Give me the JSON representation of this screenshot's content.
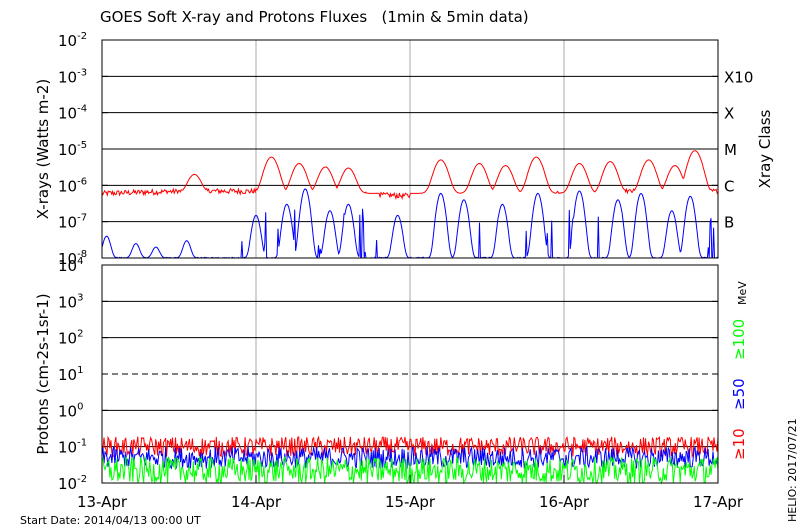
{
  "chart_data": [
    {
      "type": "line",
      "title": "GOES Soft X-ray and Protons Fluxes   (1min & 5min data)",
      "ylabel": "X-rays (Watts m-2)",
      "yscale": "log",
      "ylim": [
        1e-08,
        0.01
      ],
      "yticks": [
        {
          "base": "10",
          "exp": "-2"
        },
        {
          "base": "10",
          "exp": "-3"
        },
        {
          "base": "10",
          "exp": "-4"
        },
        {
          "base": "10",
          "exp": "-5"
        },
        {
          "base": "10",
          "exp": "-6"
        },
        {
          "base": "10",
          "exp": "-7"
        },
        {
          "base": "10",
          "exp": "-8"
        }
      ],
      "right_axis_label": "Xray Class",
      "xray_classes": [
        {
          "label": "X10",
          "value": 0.001
        },
        {
          "label": "X",
          "value": 0.0001
        },
        {
          "label": "M",
          "value": 1e-05
        },
        {
          "label": "C",
          "value": 1e-06
        },
        {
          "label": "B",
          "value": 1e-07
        }
      ],
      "series": [
        {
          "color": "#ff0000",
          "baseline": 6e-07,
          "peaks": [
            [
              1.1,
              6e-06
            ],
            [
              1.28,
              4e-06
            ],
            [
              1.6,
              3e-06
            ],
            [
              2.2,
              5e-06
            ],
            [
              2.45,
              4e-06
            ],
            [
              2.82,
              6e-06
            ],
            [
              3.1,
              4e-06
            ],
            [
              3.3,
              4.5e-06
            ],
            [
              3.55,
              5e-06
            ],
            [
              3.72,
              3.5e-06
            ],
            [
              3.85,
              9e-06
            ],
            [
              2.62,
              3.5e-06
            ],
            [
              0.6,
              2e-06
            ],
            [
              1.45,
              3.2e-06
            ]
          ]
        },
        {
          "color": "#0000ff",
          "baseline": 1e-08,
          "peaks": [
            [
              0.03,
              4e-08
            ],
            [
              0.22,
              2.5e-08
            ],
            [
              0.35,
              2e-08
            ],
            [
              0.55,
              3e-08
            ],
            [
              1.0,
              1.5e-07
            ],
            [
              1.2,
              3e-07
            ],
            [
              1.32,
              8e-07
            ],
            [
              1.48,
              2e-07
            ],
            [
              1.6,
              3e-07
            ],
            [
              1.92,
              1.5e-07
            ],
            [
              2.2,
              6e-07
            ],
            [
              2.35,
              4e-07
            ],
            [
              2.6,
              3e-07
            ],
            [
              2.83,
              6e-07
            ],
            [
              3.1,
              7e-07
            ],
            [
              3.35,
              4e-07
            ],
            [
              3.5,
              6e-07
            ],
            [
              3.7,
              2e-07
            ],
            [
              3.82,
              5e-07
            ]
          ]
        }
      ]
    },
    {
      "type": "line",
      "ylabel": "Protons (cm-2s-1sr-1)",
      "yscale": "log",
      "ylim": [
        0.01,
        10000
      ],
      "yticks": [
        {
          "base": "10",
          "exp": "4"
        },
        {
          "base": "10",
          "exp": "3"
        },
        {
          "base": "10",
          "exp": "2"
        },
        {
          "base": "10",
          "exp": "1"
        },
        {
          "base": "10",
          "exp": "0"
        },
        {
          "base": "10",
          "exp": "-1"
        },
        {
          "base": "10",
          "exp": "-2"
        }
      ],
      "threshold": 10,
      "energy_unit": "MeV",
      "series": [
        {
          "name": "≥10",
          "color": "#ff0000",
          "level": 0.1
        },
        {
          "name": "≥50",
          "color": "#0000ff",
          "level": 0.05
        },
        {
          "name": "≥100",
          "color": "#00ff00",
          "level": 0.022
        }
      ]
    }
  ],
  "x_axis": {
    "labels": [
      "13-Apr",
      "14-Apr",
      "15-Apr",
      "16-Apr",
      "17-Apr"
    ],
    "days": 4
  },
  "start_date": "Start Date: 2014/04/13 00:00 UT",
  "helio_stamp": "HELIO: 2017/07/21"
}
